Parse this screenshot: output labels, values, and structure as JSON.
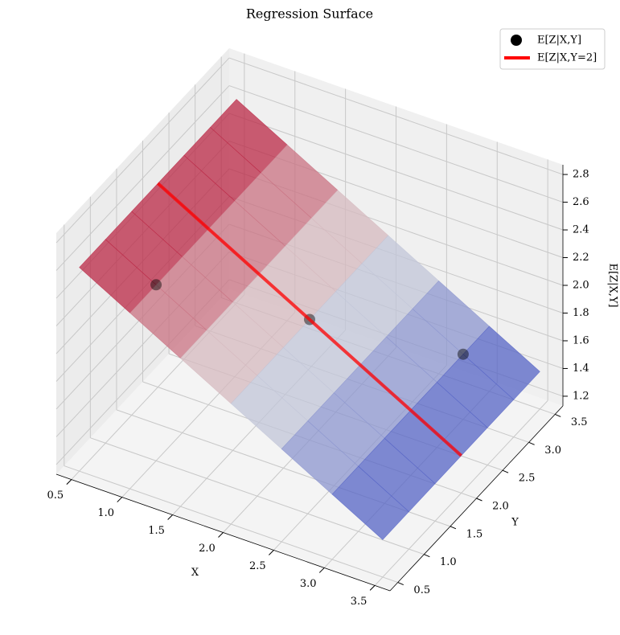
{
  "chart_data": {
    "type": "surface3d",
    "title": "Regression Surface",
    "x_label": "X",
    "y_label": "Y",
    "z_label": "E[Z|X,Y]",
    "xlim": [
      0.35,
      3.65
    ],
    "ylim": [
      0.35,
      3.65
    ],
    "zlim": [
      1.13,
      2.87
    ],
    "xticks": [
      0.5,
      {
        "value": 1,
        "label": "1.0"
      },
      1.5,
      {
        "value": 2,
        "label": "2.0"
      },
      2.5,
      {
        "value": 3,
        "label": "3.0"
      },
      3.5
    ],
    "yticks": [
      0.5,
      {
        "value": 1,
        "label": "1.0"
      },
      1.5,
      {
        "value": 2,
        "label": "2.0"
      },
      2.5,
      {
        "value": 3,
        "label": "3.0"
      },
      3.5
    ],
    "zticks": [
      1.2,
      1.4,
      1.6,
      1.8,
      {
        "value": 2,
        "label": "2.0"
      },
      2.2,
      2.4,
      2.6,
      2.8
    ],
    "grid": true,
    "legend": "upper right",
    "surface": {
      "colormap": "coolwarm",
      "x": [
        0.5,
        1,
        1.5,
        2,
        2.5,
        3,
        3.5
      ],
      "y": [
        0.5,
        1,
        1.5,
        2,
        2.5,
        3,
        3.5
      ],
      "z": [
        [
          2.6,
          2.4,
          2.2,
          2.0,
          1.8,
          1.6,
          1.4
        ],
        [
          2.6,
          2.4,
          2.2,
          2.0,
          1.8,
          1.6,
          1.4
        ],
        [
          2.6,
          2.4,
          2.2,
          2.0,
          1.8,
          1.6,
          1.4
        ],
        [
          2.6,
          2.4,
          2.2,
          2.0,
          1.8,
          1.6,
          1.4
        ],
        [
          2.6,
          2.4,
          2.2,
          2.0,
          1.8,
          1.6,
          1.4
        ],
        [
          2.6,
          2.4,
          2.2,
          2.0,
          1.8,
          1.6,
          1.4
        ],
        [
          2.6,
          2.4,
          2.2,
          2.0,
          1.8,
          1.6,
          1.4
        ]
      ]
    },
    "series": [
      {
        "name": "E[Z|X,Y]",
        "type": "scatter",
        "color": "#000000",
        "x": [
          1,
          2,
          3
        ],
        "y": [
          1,
          2,
          3
        ],
        "z": [
          2.4,
          2.0,
          1.6
        ]
      },
      {
        "name": "E[Z|X,Y=2]",
        "type": "line",
        "color": "#ff0000",
        "x": [
          0.5,
          3.5
        ],
        "y": [
          2,
          2
        ],
        "z": [
          2.6,
          1.4
        ]
      }
    ]
  }
}
